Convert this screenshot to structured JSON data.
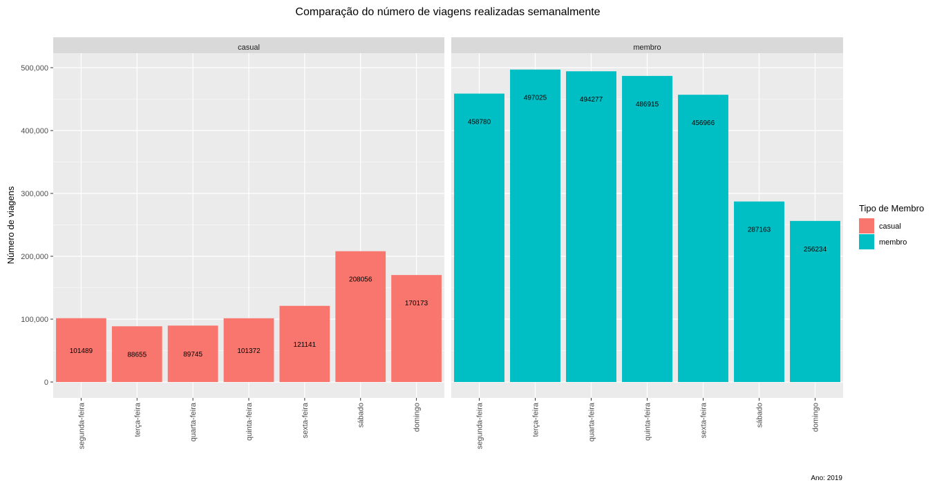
{
  "chart_data": {
    "type": "bar",
    "title": "Comparação do número de viagens realizadas semanalmente",
    "ylabel": "Número de viagens",
    "xlabel": "",
    "caption": "Ano: 2019",
    "legend_title": "Tipo de Membro",
    "legend_position": "right",
    "grid": true,
    "ylim": [
      0,
      545000
    ],
    "y_ticks": [
      0,
      100000,
      200000,
      300000,
      400000,
      500000
    ],
    "y_tick_labels": [
      "0",
      "100,000",
      "200,000",
      "300,000",
      "400,000",
      "500,000"
    ],
    "categories": [
      "segunda-feira",
      "terça-feira",
      "quarta-feira",
      "quinta-feira",
      "sexta-feira",
      "sábado",
      "domingo"
    ],
    "series": [
      {
        "name": "casual",
        "color": "#F8766D",
        "values": [
          101489,
          88655,
          89745,
          101372,
          121141,
          208056,
          170173
        ]
      },
      {
        "name": "membro",
        "color": "#00BFC4",
        "values": [
          458780,
          497025,
          494277,
          486915,
          456966,
          287163,
          256234
        ]
      }
    ]
  },
  "colors": {
    "panel_background": "#EBEBEB",
    "strip_background": "#D9D9D9",
    "grid": "#FFFFFF"
  }
}
